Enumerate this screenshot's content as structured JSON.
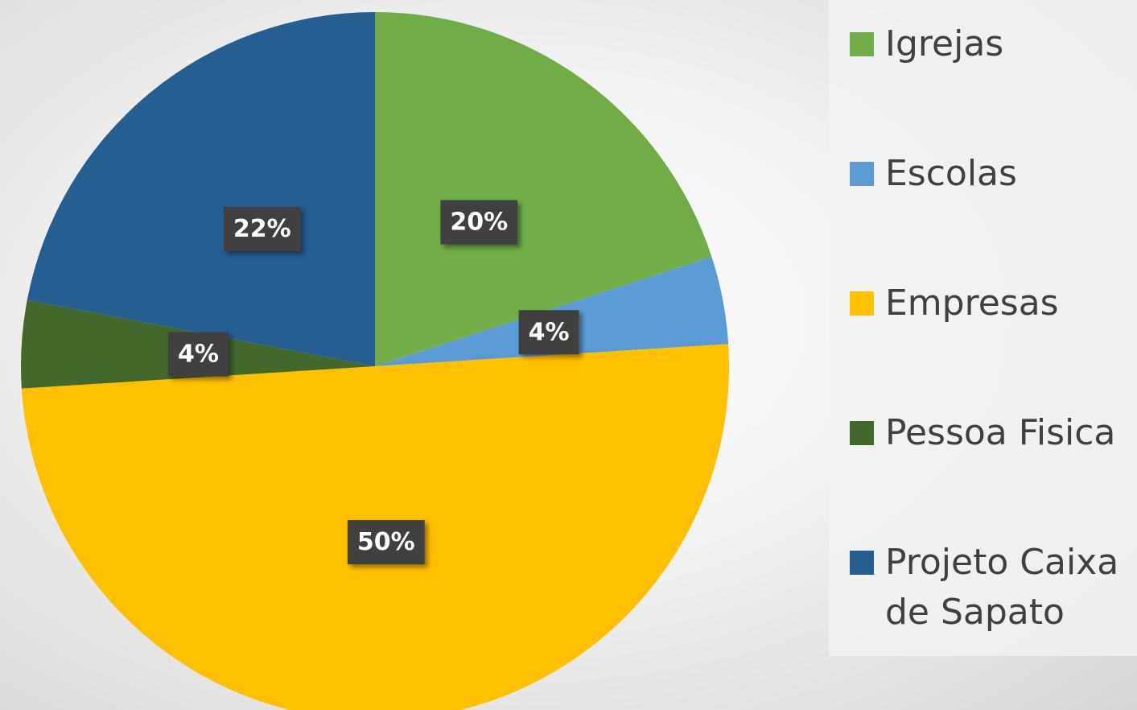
{
  "chart_data": {
    "type": "pie",
    "categories": [
      "Igrejas",
      "Escolas",
      "Empresas",
      "Pessoa Fisica",
      "Projeto Caixa de Sapato"
    ],
    "values": [
      20,
      4,
      50,
      4,
      22
    ],
    "value_labels": [
      "20%",
      "4%",
      "50%",
      "4%",
      "22%"
    ],
    "colors": [
      "#70ad47",
      "#5b9bd5",
      "#ffc000",
      "#43682b",
      "#255e91"
    ],
    "legend": "right"
  }
}
